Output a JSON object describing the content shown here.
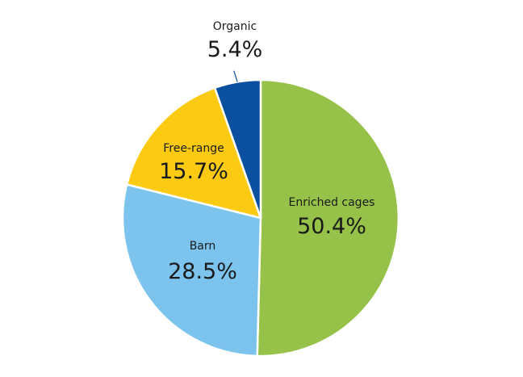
{
  "chart_data": {
    "type": "pie",
    "title": "",
    "categories": [
      "Enriched cages",
      "Barn",
      "Free-range",
      "Organic"
    ],
    "values": [
      50.4,
      28.5,
      15.7,
      5.4
    ],
    "value_labels": [
      "50.4%",
      "28.5%",
      "15.7%",
      "5.4%"
    ],
    "colors": [
      "#97c24a",
      "#7cc4ee",
      "#fcca13",
      "#0a4fa0"
    ],
    "legend": "none",
    "start": "12 o'clock",
    "direction": "clockwise"
  }
}
